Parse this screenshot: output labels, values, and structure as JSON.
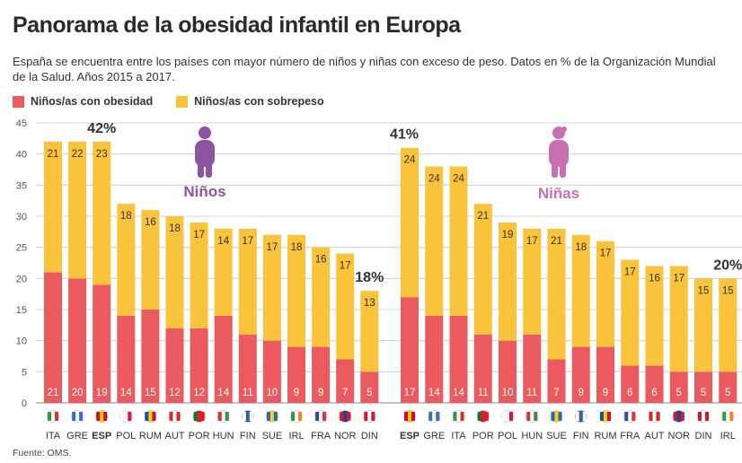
{
  "header": {
    "title": "Panorama de la obesidad infantil en Europa",
    "subtitle": "España se encuentra entre los países con mayor número de niños y niñas con exceso de peso. Datos en % de la Organización Mundial de la Salud. Años 2015 a 2017."
  },
  "legend": {
    "obesity_label": "Niños/as con obesidad",
    "overweight_label": "Niños/as con sobrepeso"
  },
  "colors": {
    "obesity": "#ea5a5e",
    "overweight": "#f9c43c",
    "boys_icon": "#8e52a3",
    "girls_icon": "#c86fb4",
    "grid": "#c9c9c9"
  },
  "footer": {
    "source": "Fuente: OMS."
  },
  "chart_data": [
    {
      "type": "bar",
      "stacked": true,
      "group_label": "Niños",
      "icon": "boy-silhouette-icon",
      "categories": [
        "ITA",
        "GRE",
        "ESP",
        "POL",
        "RUM",
        "AUT",
        "POR",
        "HUN",
        "FIN",
        "SUE",
        "IRL",
        "FRA",
        "NOR",
        "DIN"
      ],
      "highlight": "ESP",
      "series": [
        {
          "name": "Niños/as con obesidad",
          "values": [
            21,
            20,
            19,
            14,
            15,
            12,
            12,
            14,
            11,
            10,
            9,
            9,
            7,
            5
          ]
        },
        {
          "name": "Niños/as con sobrepeso",
          "values": [
            21,
            22,
            23,
            18,
            16,
            18,
            17,
            14,
            17,
            17,
            18,
            16,
            17,
            13
          ]
        }
      ],
      "callouts": [
        {
          "category": "ESP",
          "text": "42%"
        },
        {
          "category": "DIN",
          "text": "18%"
        }
      ],
      "ylim": [
        0,
        45
      ],
      "yticks": [
        0,
        5,
        10,
        15,
        20,
        25,
        30,
        35,
        40,
        45
      ],
      "grid": true
    },
    {
      "type": "bar",
      "stacked": true,
      "group_label": "Niñas",
      "icon": "girl-silhouette-icon",
      "categories": [
        "ESP",
        "GRE",
        "ITA",
        "POR",
        "POL",
        "HUN",
        "SUE",
        "FIN",
        "RUM",
        "FRA",
        "AUT",
        "NOR",
        "DIN",
        "IRL"
      ],
      "highlight": "ESP",
      "series": [
        {
          "name": "Niños/as con obesidad",
          "values": [
            17,
            14,
            14,
            11,
            10,
            11,
            7,
            9,
            9,
            6,
            6,
            5,
            5,
            5
          ]
        },
        {
          "name": "Niños/as con sobrepeso",
          "values": [
            24,
            24,
            24,
            21,
            19,
            17,
            21,
            18,
            17,
            17,
            16,
            17,
            15,
            15
          ]
        }
      ],
      "callouts": [
        {
          "category": "ESP",
          "text": "41%"
        },
        {
          "category": "IRL",
          "text": "20%"
        }
      ],
      "ylim": [
        0,
        45
      ],
      "grid": true
    }
  ]
}
